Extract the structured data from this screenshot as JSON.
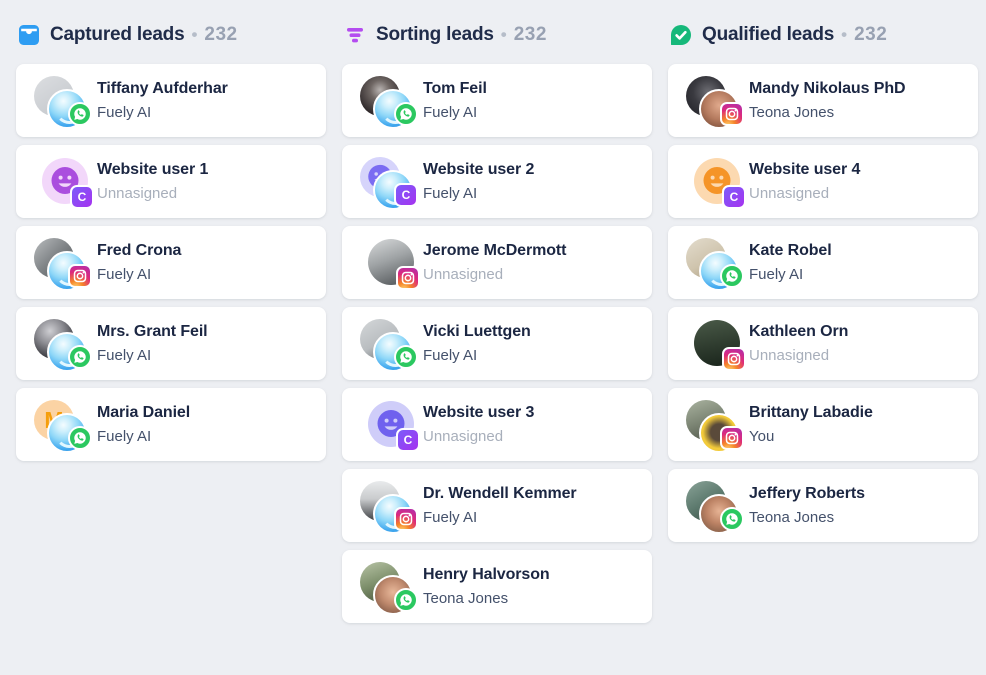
{
  "board": {
    "background": "#edeff3",
    "separator": "•",
    "columns": [
      {
        "title": "Captured leads",
        "count": "232",
        "icon": "inbox-icon",
        "icon_color": "#2e9df2",
        "cards": [
          {
            "name": "Tiffany Aufderhar",
            "assignee": "Fuely AI",
            "muted": false,
            "avatar": {
              "kind": "photo",
              "bg": "linear-gradient(145deg,#dcdee1 0%,#cdd0d4 55%,#c2c5c9 100%)"
            },
            "secondary": "bot",
            "badge": "whatsapp"
          },
          {
            "name": "Website user 1",
            "assignee": "Unnasigned",
            "muted": true,
            "avatar": {
              "kind": "smiley",
              "bg": "#f2d7fa",
              "face": "#aa4ede"
            },
            "secondary": null,
            "badge": "crisp"
          },
          {
            "name": "Fred Crona",
            "assignee": "Fuely AI",
            "muted": false,
            "avatar": {
              "kind": "photo",
              "bg": "linear-gradient(135deg,#b9bcbe 0%,#7e8285 50%,#4e5255 100%)"
            },
            "secondary": "bot",
            "badge": "instagram"
          },
          {
            "name": "Mrs. Grant Feil",
            "assignee": "Fuely AI",
            "muted": false,
            "avatar": {
              "kind": "photo",
              "bg": "radial-gradient(circle at 40% 30%,#cfcfd3 0%,#8e8e94 35%,#2a2a30 80%)"
            },
            "secondary": "bot",
            "badge": "whatsapp"
          },
          {
            "name": "Maria Daniel",
            "assignee": "Fuely AI",
            "muted": false,
            "avatar": {
              "kind": "initial",
              "bg": "#fbd3a4",
              "color": "#f59e0b",
              "letter": "M"
            },
            "secondary": "bot",
            "badge": "whatsapp"
          }
        ]
      },
      {
        "title": "Sorting leads",
        "count": "232",
        "icon": "filter-icon",
        "icon_color": "#b44cf0",
        "cards": [
          {
            "name": "Tom Feil",
            "assignee": "Fuely AI",
            "muted": false,
            "avatar": {
              "kind": "photo",
              "bg": "radial-gradient(circle at 50% 35%,#b9b4b2 0%,#6e6663 30%,#2e282a 75%)"
            },
            "secondary": "bot",
            "badge": "whatsapp"
          },
          {
            "name": "Website user 2",
            "assignee": "Fuely AI",
            "muted": false,
            "avatar": {
              "kind": "smiley",
              "bg": "#d6d4fb",
              "face": "#7b6cf2"
            },
            "secondary": "bot",
            "badge": "crisp"
          },
          {
            "name": "Jerome McDermott",
            "assignee": "Unnasigned",
            "muted": true,
            "avatar": {
              "kind": "photo",
              "bg": "linear-gradient(160deg,#d8dadb 0%,#9fa3a5 45%,#4b4f52 100%)"
            },
            "secondary": null,
            "badge": "instagram"
          },
          {
            "name": "Vicki Luettgen",
            "assignee": "Fuely AI",
            "muted": false,
            "avatar": {
              "kind": "photo",
              "bg": "linear-gradient(150deg,#d4d7d9 0%,#b9bdc0 55%,#595f63 100%)"
            },
            "secondary": "bot",
            "badge": "whatsapp"
          },
          {
            "name": "Website user 3",
            "assignee": "Unnasigned",
            "muted": true,
            "avatar": {
              "kind": "smiley",
              "bg": "#cfcdf9",
              "face": "#6f61ee"
            },
            "secondary": null,
            "badge": "crisp"
          },
          {
            "name": "Dr. Wendell Kemmer",
            "assignee": "Fuely AI",
            "muted": false,
            "avatar": {
              "kind": "photo",
              "bg": "linear-gradient(180deg,#e9ebec 0%,#c9cbcd 45%,#3d3f42 100%)"
            },
            "secondary": "bot",
            "badge": "instagram"
          },
          {
            "name": "Henry Halvorson",
            "assignee": "Teona Jones",
            "muted": false,
            "avatar": {
              "kind": "photo",
              "bg": "linear-gradient(160deg,#b8c4a6 0%,#7d8f6b 50%,#434f38 100%)"
            },
            "secondary": {
              "kind": "photo",
              "bg": "radial-gradient(circle at 50% 42%,#e8b89a 0%,#c08a6e 45%,#6e4a38 100%)"
            },
            "badge": "whatsapp"
          }
        ]
      },
      {
        "title": "Qualified leads",
        "count": "232",
        "icon": "check-circle-icon",
        "icon_color": "#16b87a",
        "cards": [
          {
            "name": "Mandy Nikolaus PhD",
            "assignee": "Teona Jones",
            "muted": false,
            "avatar": {
              "kind": "photo",
              "bg": "radial-gradient(circle at 55% 40%,#6e6e74 0%,#3a3a40 45%,#1e1e24 100%)"
            },
            "secondary": {
              "kind": "photo",
              "bg": "radial-gradient(circle at 50% 40%,#e0a98c 0%,#b47a5e 50%,#6e4330 100%)"
            },
            "badge": "instagram"
          },
          {
            "name": "Website user 4",
            "assignee": "Unnasigned",
            "muted": true,
            "avatar": {
              "kind": "smiley",
              "bg": "#fcd9b0",
              "face": "#f59427"
            },
            "secondary": null,
            "badge": "crisp"
          },
          {
            "name": "Kate Robel",
            "assignee": "Fuely AI",
            "muted": false,
            "avatar": {
              "kind": "photo",
              "bg": "linear-gradient(150deg,#e3dccd 0%,#cfc4ad 55%,#a89a7e 100%)"
            },
            "secondary": "bot",
            "badge": "whatsapp"
          },
          {
            "name": "Kathleen Orn",
            "assignee": "Unnasigned",
            "muted": true,
            "avatar": {
              "kind": "photo",
              "bg": "linear-gradient(170deg,#4a5a48 0%,#2e3b2e 55%,#18231a 100%)"
            },
            "secondary": null,
            "badge": "instagram"
          },
          {
            "name": "Brittany Labadie",
            "assignee": "You",
            "muted": false,
            "avatar": {
              "kind": "photo",
              "bg": "linear-gradient(160deg,#aab3a0 0%,#7c8574 50%,#4a5044 100%)"
            },
            "secondary": {
              "kind": "photo",
              "bg": "radial-gradient(circle at 50% 48%,#5a4a3a 0%,#5a4a3a 32%,#f2ca3a 62%)"
            },
            "badge": "instagram"
          },
          {
            "name": "Jeffery Roberts",
            "assignee": "Teona Jones",
            "muted": false,
            "avatar": {
              "kind": "photo",
              "bg": "linear-gradient(150deg,#8aa398 0%,#5d7a6e 50%,#35493f 100%)"
            },
            "secondary": {
              "kind": "photo",
              "bg": "radial-gradient(circle at 50% 42%,#e6b394 0%,#bd8365 45%,#70503c 100%)"
            },
            "badge": "whatsapp"
          }
        ]
      }
    ]
  },
  "colors": {
    "accent_blue": "#2e9df2",
    "accent_purple": "#b44cf0",
    "accent_green": "#16b87a",
    "whatsapp_green": "#2bc860",
    "title_text": "#202c4a",
    "count_text": "#98a1b2",
    "muted_text": "#a8afbb"
  }
}
